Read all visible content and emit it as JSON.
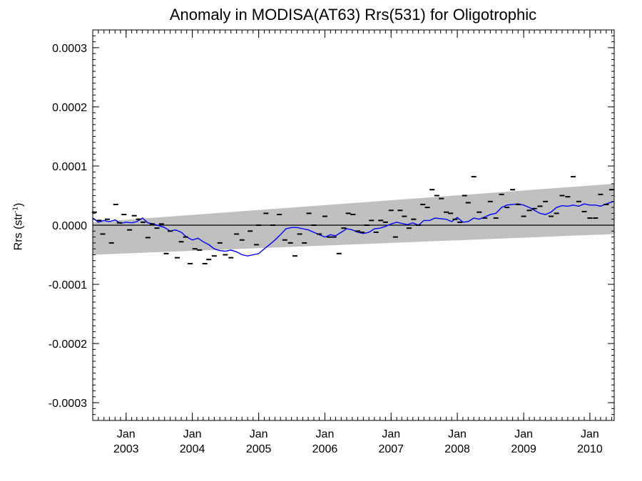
{
  "chart_data": {
    "type": "line",
    "title": "Anomaly in MODISA(AT63) Rrs(531) for Oligotrophic",
    "ylabel": {
      "text": "Rrs (str",
      "sup": "-1",
      "close": ")"
    },
    "xlabel": "",
    "xlim": [
      "2002-07-01",
      "2010-05-15"
    ],
    "ylim": [
      -0.00033,
      0.00033
    ],
    "yticks": [
      -0.0003,
      -0.0002,
      -0.0001,
      0.0,
      0.0001,
      0.0002,
      0.0003
    ],
    "ytick_labels": [
      "-0.0003",
      "-0.0002",
      "-0.0001",
      "0.0000",
      "0.0001",
      "0.0002",
      "0.0003"
    ],
    "xticks": [
      {
        "date": "2003-01-01",
        "line1": "Jan",
        "line2": "2003"
      },
      {
        "date": "2004-01-01",
        "line1": "Jan",
        "line2": "2004"
      },
      {
        "date": "2005-01-01",
        "line1": "Jan",
        "line2": "2005"
      },
      {
        "date": "2006-01-01",
        "line1": "Jan",
        "line2": "2006"
      },
      {
        "date": "2007-01-01",
        "line1": "Jan",
        "line2": "2007"
      },
      {
        "date": "2008-01-01",
        "line1": "Jan",
        "line2": "2008"
      },
      {
        "date": "2009-01-01",
        "line1": "Jan",
        "line2": "2009"
      },
      {
        "date": "2010-01-01",
        "line1": "Jan",
        "line2": "2010"
      }
    ],
    "zero_line": 0.0,
    "trend_band": {
      "color": "#c0c0c0",
      "start": {
        "date": "2002-07-01",
        "low": -5e-05,
        "high": 5e-06
      },
      "end": {
        "date": "2010-05-15",
        "low": -1.5e-05,
        "high": 7e-05
      }
    },
    "series": [
      {
        "style": "line",
        "color": "#0000ff",
        "points": [
          [
            "2002-07-01",
            1.2e-05
          ],
          [
            "2002-08-01",
            5e-06
          ],
          [
            "2002-09-01",
            8e-06
          ],
          [
            "2002-10-01",
            6e-06
          ],
          [
            "2002-11-01",
            9e-06
          ],
          [
            "2002-12-01",
            3e-06
          ],
          [
            "2003-01-01",
            5e-06
          ],
          [
            "2003-02-01",
            4e-06
          ],
          [
            "2003-03-01",
            6e-06
          ],
          [
            "2003-04-01",
            1.2e-05
          ],
          [
            "2003-05-01",
            4e-06
          ],
          [
            "2003-06-01",
            2e-06
          ],
          [
            "2003-07-01",
            -1e-06
          ],
          [
            "2003-08-01",
            -4e-06
          ],
          [
            "2003-09-01",
            -1e-05
          ],
          [
            "2003-10-01",
            -8e-06
          ],
          [
            "2003-11-01",
            -1.2e-05
          ],
          [
            "2003-12-01",
            -2e-05
          ],
          [
            "2004-01-01",
            -2.5e-05
          ],
          [
            "2004-02-01",
            -2.2e-05
          ],
          [
            "2004-03-01",
            -2.8e-05
          ],
          [
            "2004-04-01",
            -3.3e-05
          ],
          [
            "2004-05-01",
            -4e-05
          ],
          [
            "2004-06-01",
            -4.3e-05
          ],
          [
            "2004-07-01",
            -4.4e-05
          ],
          [
            "2004-08-01",
            -4.2e-05
          ],
          [
            "2004-09-01",
            -4.5e-05
          ],
          [
            "2004-10-01",
            -5e-05
          ],
          [
            "2004-11-01",
            -5.2e-05
          ],
          [
            "2004-12-01",
            -5e-05
          ],
          [
            "2005-01-01",
            -4.8e-05
          ],
          [
            "2005-02-01",
            -4e-05
          ],
          [
            "2005-03-01",
            -3.3e-05
          ],
          [
            "2005-04-01",
            -2.5e-05
          ],
          [
            "2005-05-01",
            -1.6e-05
          ],
          [
            "2005-06-01",
            -6e-06
          ],
          [
            "2005-07-01",
            -4e-06
          ],
          [
            "2005-08-01",
            -4e-06
          ],
          [
            "2005-09-01",
            -6e-06
          ],
          [
            "2005-10-01",
            -8e-06
          ],
          [
            "2005-11-01",
            -1.2e-05
          ],
          [
            "2005-12-01",
            -1.6e-05
          ],
          [
            "2006-01-01",
            -2e-05
          ],
          [
            "2006-02-01",
            -1.6e-05
          ],
          [
            "2006-03-01",
            -1.8e-05
          ],
          [
            "2006-04-01",
            -1.2e-05
          ],
          [
            "2006-05-01",
            -6e-06
          ],
          [
            "2006-06-01",
            -8e-06
          ],
          [
            "2006-07-01",
            -1.2e-05
          ],
          [
            "2006-08-01",
            -1.4e-05
          ],
          [
            "2006-09-01",
            -1.2e-05
          ],
          [
            "2006-10-01",
            -6e-06
          ],
          [
            "2006-11-01",
            -5e-06
          ],
          [
            "2006-12-01",
            -2e-06
          ],
          [
            "2007-01-01",
            2e-06
          ],
          [
            "2007-02-01",
            5e-06
          ],
          [
            "2007-03-01",
            3e-06
          ],
          [
            "2007-04-01",
            1e-06
          ],
          [
            "2007-05-01",
            4e-06
          ],
          [
            "2007-06-01",
            0.0
          ],
          [
            "2007-07-01",
            8e-06
          ],
          [
            "2007-08-01",
            8e-06
          ],
          [
            "2007-09-01",
            1.2e-05
          ],
          [
            "2007-10-01",
            1.1e-05
          ],
          [
            "2007-11-01",
            1e-05
          ],
          [
            "2007-12-01",
            6e-06
          ],
          [
            "2008-01-01",
            1.3e-05
          ],
          [
            "2008-02-01",
            5e-06
          ],
          [
            "2008-03-01",
            6e-06
          ],
          [
            "2008-04-01",
            1.2e-05
          ],
          [
            "2008-05-01",
            1e-05
          ],
          [
            "2008-06-01",
            1.4e-05
          ],
          [
            "2008-07-01",
            1.8e-05
          ],
          [
            "2008-08-01",
            2e-05
          ],
          [
            "2008-09-01",
            3e-05
          ],
          [
            "2008-10-01",
            3.4e-05
          ],
          [
            "2008-11-01",
            3.5e-05
          ],
          [
            "2008-12-01",
            3.6e-05
          ],
          [
            "2009-01-01",
            3.4e-05
          ],
          [
            "2009-02-01",
            3e-05
          ],
          [
            "2009-03-01",
            2.5e-05
          ],
          [
            "2009-04-01",
            2e-05
          ],
          [
            "2009-05-01",
            1.8e-05
          ],
          [
            "2009-06-01",
            2.2e-05
          ],
          [
            "2009-07-01",
            3e-05
          ],
          [
            "2009-08-01",
            3.3e-05
          ],
          [
            "2009-09-01",
            3.2e-05
          ],
          [
            "2009-10-01",
            3.4e-05
          ],
          [
            "2009-11-01",
            3.2e-05
          ],
          [
            "2009-12-01",
            3.6e-05
          ],
          [
            "2010-01-01",
            3.4e-05
          ],
          [
            "2010-02-01",
            3.4e-05
          ],
          [
            "2010-03-01",
            3.2e-05
          ],
          [
            "2010-04-01",
            3.6e-05
          ],
          [
            "2010-05-10",
            4e-05
          ]
        ]
      },
      {
        "style": "dash-markers",
        "color": "#000000",
        "points": [
          [
            "2002-07-10",
            2.2e-05
          ],
          [
            "2002-08-05",
            8e-06
          ],
          [
            "2002-08-25",
            -1.5e-05
          ],
          [
            "2002-09-20",
            1e-05
          ],
          [
            "2002-10-12",
            -3e-05
          ],
          [
            "2002-11-05",
            3.5e-05
          ],
          [
            "2002-11-25",
            4e-06
          ],
          [
            "2002-12-20",
            1.8e-05
          ],
          [
            "2003-01-20",
            -8e-06
          ],
          [
            "2003-02-15",
            1.6e-05
          ],
          [
            "2003-03-10",
            1e-05
          ],
          [
            "2003-04-05",
            5e-06
          ],
          [
            "2003-05-01",
            -2.1e-05
          ],
          [
            "2003-05-25",
            2e-06
          ],
          [
            "2003-06-20",
            -5e-06
          ],
          [
            "2003-07-15",
            2e-06
          ],
          [
            "2003-08-10",
            -4.8e-05
          ],
          [
            "2003-09-01",
            -1e-05
          ],
          [
            "2003-10-10",
            -5.5e-05
          ],
          [
            "2003-11-01",
            -2.8e-05
          ],
          [
            "2003-11-25",
            -2e-05
          ],
          [
            "2003-12-20",
            -6.5e-05
          ],
          [
            "2004-01-15",
            -4e-05
          ],
          [
            "2004-02-10",
            -4.2e-05
          ],
          [
            "2004-03-10",
            -6.5e-05
          ],
          [
            "2004-04-01",
            -5.8e-05
          ],
          [
            "2004-05-01",
            -5.2e-05
          ],
          [
            "2004-06-01",
            -3e-05
          ],
          [
            "2004-07-01",
            -5e-05
          ],
          [
            "2004-08-01",
            -5.5e-05
          ],
          [
            "2004-09-01",
            -1.5e-05
          ],
          [
            "2004-10-01",
            -2.5e-05
          ],
          [
            "2004-11-15",
            -1e-05
          ],
          [
            "2004-12-20",
            -3.3e-05
          ],
          [
            "2005-01-01",
            0.0
          ],
          [
            "2005-02-10",
            2e-05
          ],
          [
            "2005-03-20",
            0.0
          ],
          [
            "2005-04-25",
            1.8e-05
          ],
          [
            "2005-05-25",
            -2.5e-05
          ],
          [
            "2005-06-25",
            -3e-05
          ],
          [
            "2005-07-20",
            -5.2e-05
          ],
          [
            "2005-08-15",
            -1.5e-05
          ],
          [
            "2005-09-10",
            -3e-05
          ],
          [
            "2005-10-05",
            2e-05
          ],
          [
            "2005-11-01",
            0.0
          ],
          [
            "2005-12-01",
            -1.5e-05
          ],
          [
            "2006-01-01",
            1.5e-05
          ],
          [
            "2006-01-25",
            -2e-05
          ],
          [
            "2006-02-20",
            -2e-05
          ],
          [
            "2006-03-20",
            -4.8e-05
          ],
          [
            "2006-04-15",
            -5e-06
          ],
          [
            "2006-05-10",
            2e-05
          ],
          [
            "2006-06-05",
            1.8e-05
          ],
          [
            "2006-07-01",
            -1e-05
          ],
          [
            "2006-07-25",
            -1.2e-05
          ],
          [
            "2006-08-20",
            0.0
          ],
          [
            "2006-09-15",
            8e-06
          ],
          [
            "2006-10-10",
            -1.2e-05
          ],
          [
            "2006-11-05",
            8e-06
          ],
          [
            "2006-12-01",
            5e-06
          ],
          [
            "2007-01-01",
            2.5e-05
          ],
          [
            "2007-01-25",
            -2e-05
          ],
          [
            "2007-02-20",
            2.5e-05
          ],
          [
            "2007-03-15",
            1.5e-05
          ],
          [
            "2007-04-10",
            -5e-06
          ],
          [
            "2007-05-05",
            1e-05
          ],
          [
            "2007-06-01",
            0.0
          ],
          [
            "2007-06-25",
            3.5e-05
          ],
          [
            "2007-07-20",
            3e-05
          ],
          [
            "2007-08-15",
            6e-05
          ],
          [
            "2007-09-10",
            5e-05
          ],
          [
            "2007-10-05",
            4.5e-05
          ],
          [
            "2007-11-01",
            2.2e-05
          ],
          [
            "2007-11-25",
            2e-05
          ],
          [
            "2007-12-20",
            1e-05
          ],
          [
            "2008-01-15",
            5e-06
          ],
          [
            "2008-02-10",
            5e-05
          ],
          [
            "2008-03-01",
            3.8e-05
          ],
          [
            "2008-04-01",
            8.2e-05
          ],
          [
            "2008-05-01",
            2.2e-05
          ],
          [
            "2008-06-01",
            1.2e-05
          ],
          [
            "2008-07-01",
            4e-05
          ],
          [
            "2008-08-01",
            1.2e-05
          ],
          [
            "2008-09-01",
            5.2e-05
          ],
          [
            "2008-10-01",
            3e-05
          ],
          [
            "2008-11-01",
            6e-05
          ],
          [
            "2008-12-01",
            3.5e-05
          ],
          [
            "2009-01-01",
            1.5e-05
          ],
          [
            "2009-02-01",
            2.5e-05
          ],
          [
            "2009-03-01",
            2.8e-05
          ],
          [
            "2009-04-01",
            3.2e-05
          ],
          [
            "2009-05-01",
            4e-05
          ],
          [
            "2009-06-01",
            1.5e-05
          ],
          [
            "2009-07-01",
            2e-05
          ],
          [
            "2009-08-01",
            5e-05
          ],
          [
            "2009-09-01",
            4.8e-05
          ],
          [
            "2009-10-01",
            8.2e-05
          ],
          [
            "2009-11-01",
            4e-05
          ],
          [
            "2009-12-01",
            2.3e-05
          ],
          [
            "2010-01-01",
            1.2e-05
          ],
          [
            "2010-02-01",
            1.2e-05
          ],
          [
            "2010-03-01",
            5.2e-05
          ],
          [
            "2010-04-01",
            3.5e-05
          ],
          [
            "2010-05-01",
            6e-05
          ]
        ]
      }
    ]
  }
}
